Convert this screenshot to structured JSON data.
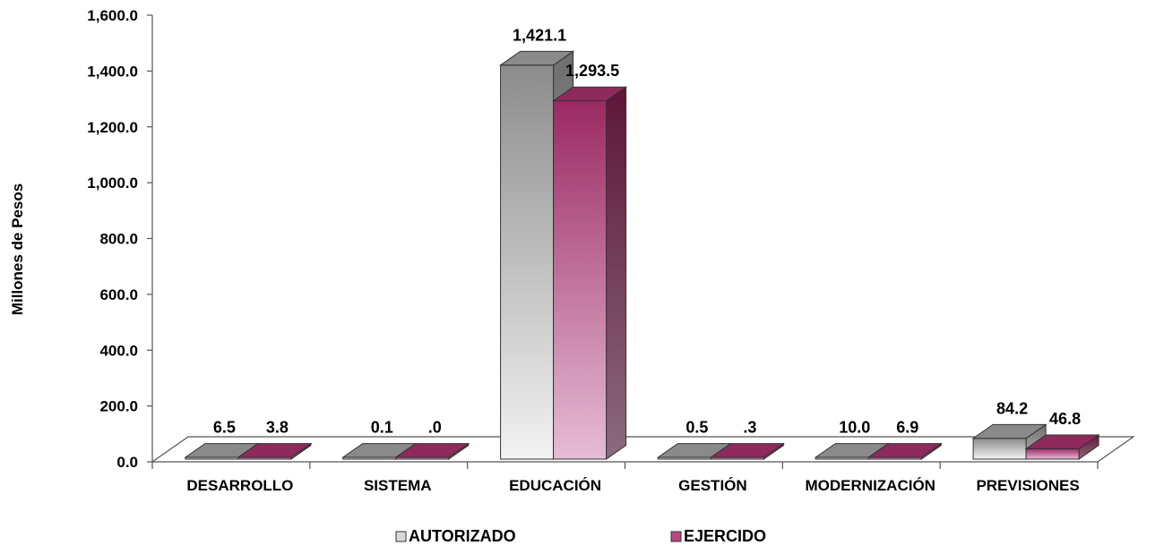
{
  "chart_data": {
    "type": "bar",
    "ylabel": "Millones de Pesos",
    "ylim": [
      0,
      1600
    ],
    "y_ticks": [
      "0.0",
      "200.0",
      "400.0",
      "600.0",
      "800.0",
      "1,000.0",
      "1,200.0",
      "1,400.0",
      "1,600.0"
    ],
    "categories": [
      "DESARROLLO",
      "SISTEMA",
      "EDUCACIÓN",
      "GESTIÓN",
      "MODERNIZACIÓN",
      "PREVISIONES"
    ],
    "series": [
      {
        "name": "AUTORIZADO",
        "values": [
          6.5,
          0.1,
          1421.1,
          0.5,
          10.0,
          84.2
        ],
        "labels": [
          "6.5",
          "0.1",
          "1,421.1",
          "0.5",
          "10.0",
          "84.2"
        ],
        "color": "#b3b3b3"
      },
      {
        "name": "EJERCIDO",
        "values": [
          3.8,
          0.0,
          1293.5,
          0.3,
          6.9,
          46.8
        ],
        "labels": [
          "3.8",
          ".0",
          "1,293.5",
          ".3",
          "6.9",
          "46.8"
        ],
        "color": "#a3336b"
      }
    ],
    "legend_position": "bottom",
    "grid": false,
    "style": "3d"
  }
}
